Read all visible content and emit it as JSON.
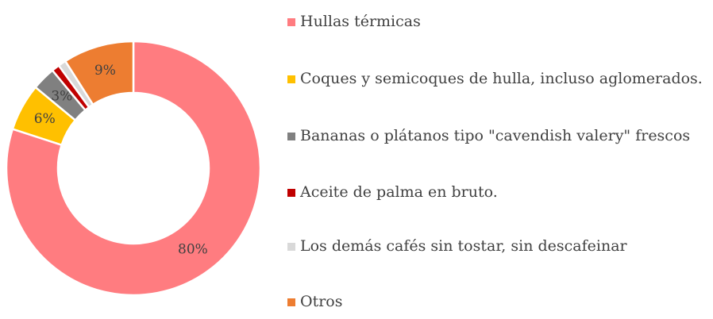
{
  "chart_data": {
    "type": "pie",
    "donut": true,
    "categories": [
      "Hullas térmicas",
      "Coques y semicoques de hulla, incluso aglomerados.",
      "Bananas o plátanos tipo \"cavendish valery\" frescos",
      "Aceite de palma en bruto.",
      "Los demás cafés sin tostar, sin descafeinar",
      "Otros"
    ],
    "values": [
      80,
      6,
      3,
      1,
      1,
      9
    ],
    "value_labels": [
      "80%",
      "6%",
      "3%",
      null,
      null,
      "9%"
    ],
    "colors": [
      "#ff7c80",
      "#ffc000",
      "#808080",
      "#c00000",
      "#d9d9d9",
      "#ed7d31"
    ],
    "legend": "right"
  }
}
